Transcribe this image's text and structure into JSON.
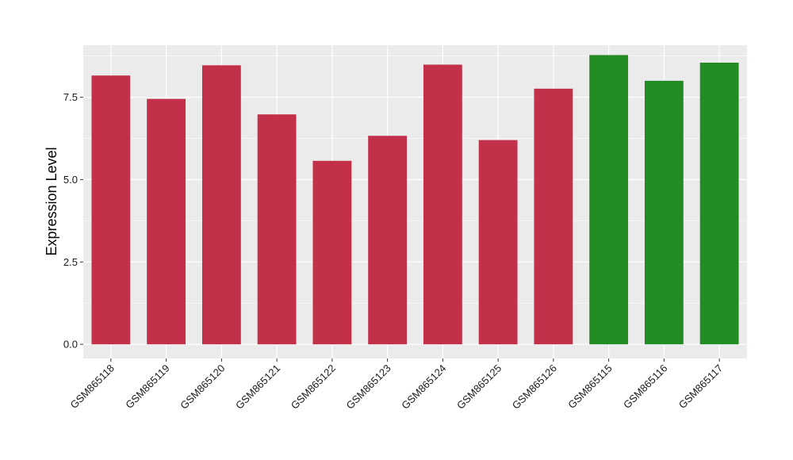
{
  "chart_data": {
    "type": "bar",
    "title": "",
    "xlabel": "",
    "ylabel": "Expression Level",
    "categories": [
      "GSM865118",
      "GSM865119",
      "GSM865120",
      "GSM865121",
      "GSM865122",
      "GSM865123",
      "GSM865124",
      "GSM865125",
      "GSM865126",
      "GSM865115",
      "GSM865116",
      "GSM865117"
    ],
    "values": [
      8.16,
      7.45,
      8.47,
      6.98,
      5.57,
      6.33,
      8.49,
      6.2,
      7.76,
      8.78,
      8.0,
      8.55
    ],
    "bar_colors": [
      "#c3304a",
      "#c3304a",
      "#c3304a",
      "#c3304a",
      "#c3304a",
      "#c3304a",
      "#c3304a",
      "#c3304a",
      "#c3304a",
      "#228b22",
      "#228b22",
      "#228b22"
    ],
    "yticks": [
      0,
      2.5,
      5,
      7.5
    ],
    "ytick_labels": [
      "0.0",
      "2.5",
      "5.0",
      "7.5"
    ],
    "ylim": [
      -0.43,
      9.08
    ],
    "grid": true,
    "legend": "none",
    "panel_background": "#ebebeb",
    "grid_color": "#ffffff"
  }
}
